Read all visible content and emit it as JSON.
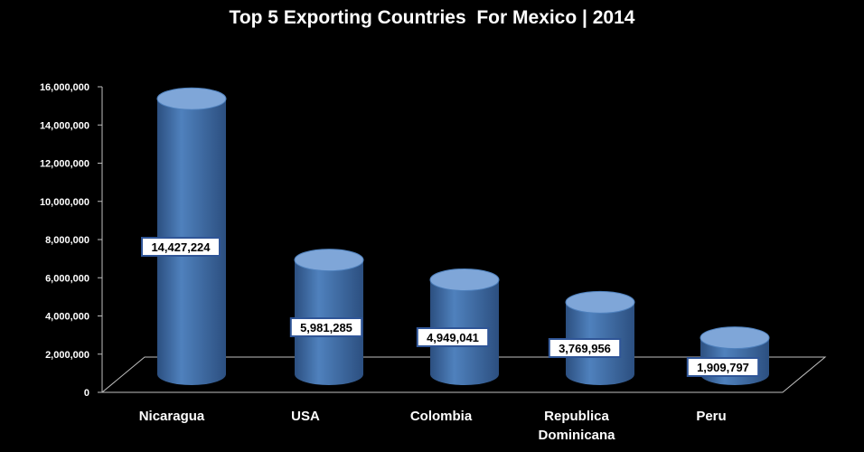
{
  "chart_data": {
    "type": "bar",
    "style": "3d-cylinder",
    "title": "Top 5 Exporting Countries  For Mexico | 2014",
    "categories": [
      [
        "Nicaragua"
      ],
      [
        "USA"
      ],
      [
        "Colombia"
      ],
      [
        "Republica",
        "Dominicana"
      ],
      [
        "Peru"
      ]
    ],
    "values": [
      14427224,
      5981285,
      4949041,
      3769956,
      1909797
    ],
    "data_labels": [
      "14,427,224",
      "5,981,285",
      "4,949,041",
      "3,769,956",
      "1,909,797"
    ],
    "yticks": [
      "0",
      "2,000,000",
      "4,000,000",
      "6,000,000",
      "8,000,000",
      "10,000,000",
      "12,000,000",
      "14,000,000",
      "16,000,000"
    ],
    "ylim": [
      0,
      16000000
    ],
    "xlabel": "",
    "ylabel": "",
    "grid": false,
    "legend": "none",
    "colors": {
      "bar": "#4f81bd",
      "bar_dark": "#2c4f80",
      "bar_light": "#7fa6d8",
      "background": "#000000",
      "text": "#ffffff",
      "axis": "#bfbfbf"
    }
  }
}
